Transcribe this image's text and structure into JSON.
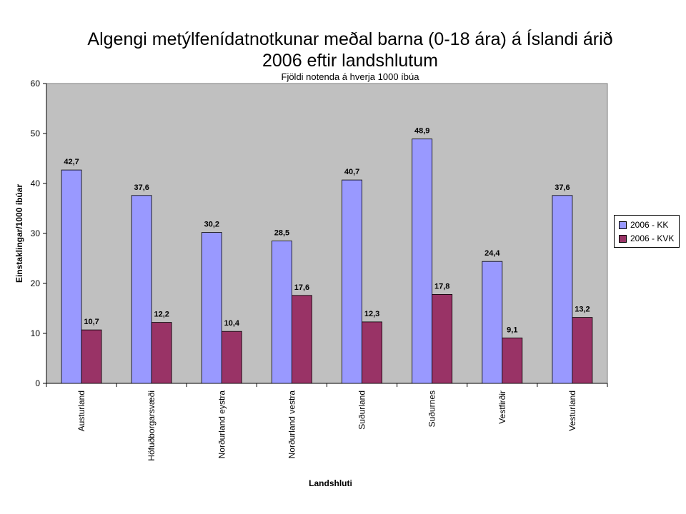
{
  "chart_data": {
    "type": "bar",
    "title": "Algengi metýlfenídatnotkunar meðal barna (0-18 ára) á Íslandi árið 2006 eftir landshlutum",
    "title_line1": "Algengi metýlfenídatnotkunar meðal barna (0-18 ára) á Íslandi árið",
    "title_line2": "2006 eftir landshlutum",
    "subtitle": "Fjöldi notenda á hverja 1000 íbúa",
    "xlabel": "Landshluti",
    "ylabel": "Einstaklingar/1000 íbúar",
    "ylim": [
      0,
      60
    ],
    "yticks": [
      "0",
      "10",
      "20",
      "30",
      "40",
      "50",
      "60"
    ],
    "categories": [
      "Austurland",
      "Höfuðborgarsvæði",
      "Norðurland eystra",
      "Norðurland vestra",
      "Suðurland",
      "Suðurnes",
      "Vestfirðir",
      "Vesturland"
    ],
    "series": [
      {
        "name": "2006 - KK",
        "color": "#9999ff",
        "values": [
          42.7,
          37.6,
          30.2,
          28.5,
          40.7,
          48.9,
          24.4,
          37.6
        ],
        "labels": [
          "42,7",
          "37,6",
          "30,2",
          "28,5",
          "40,7",
          "48,9",
          "24,4",
          "37,6"
        ]
      },
      {
        "name": "2006 - KVK",
        "color": "#993366",
        "values": [
          10.7,
          12.2,
          10.4,
          17.6,
          12.3,
          17.8,
          9.1,
          13.2
        ],
        "labels": [
          "10,7",
          "12,2",
          "10,4",
          "17,6",
          "12,3",
          "17,8",
          "9,1",
          "13,2"
        ]
      }
    ],
    "plot_background": "#c0c0c0",
    "grid": false,
    "legend_position": "right"
  }
}
